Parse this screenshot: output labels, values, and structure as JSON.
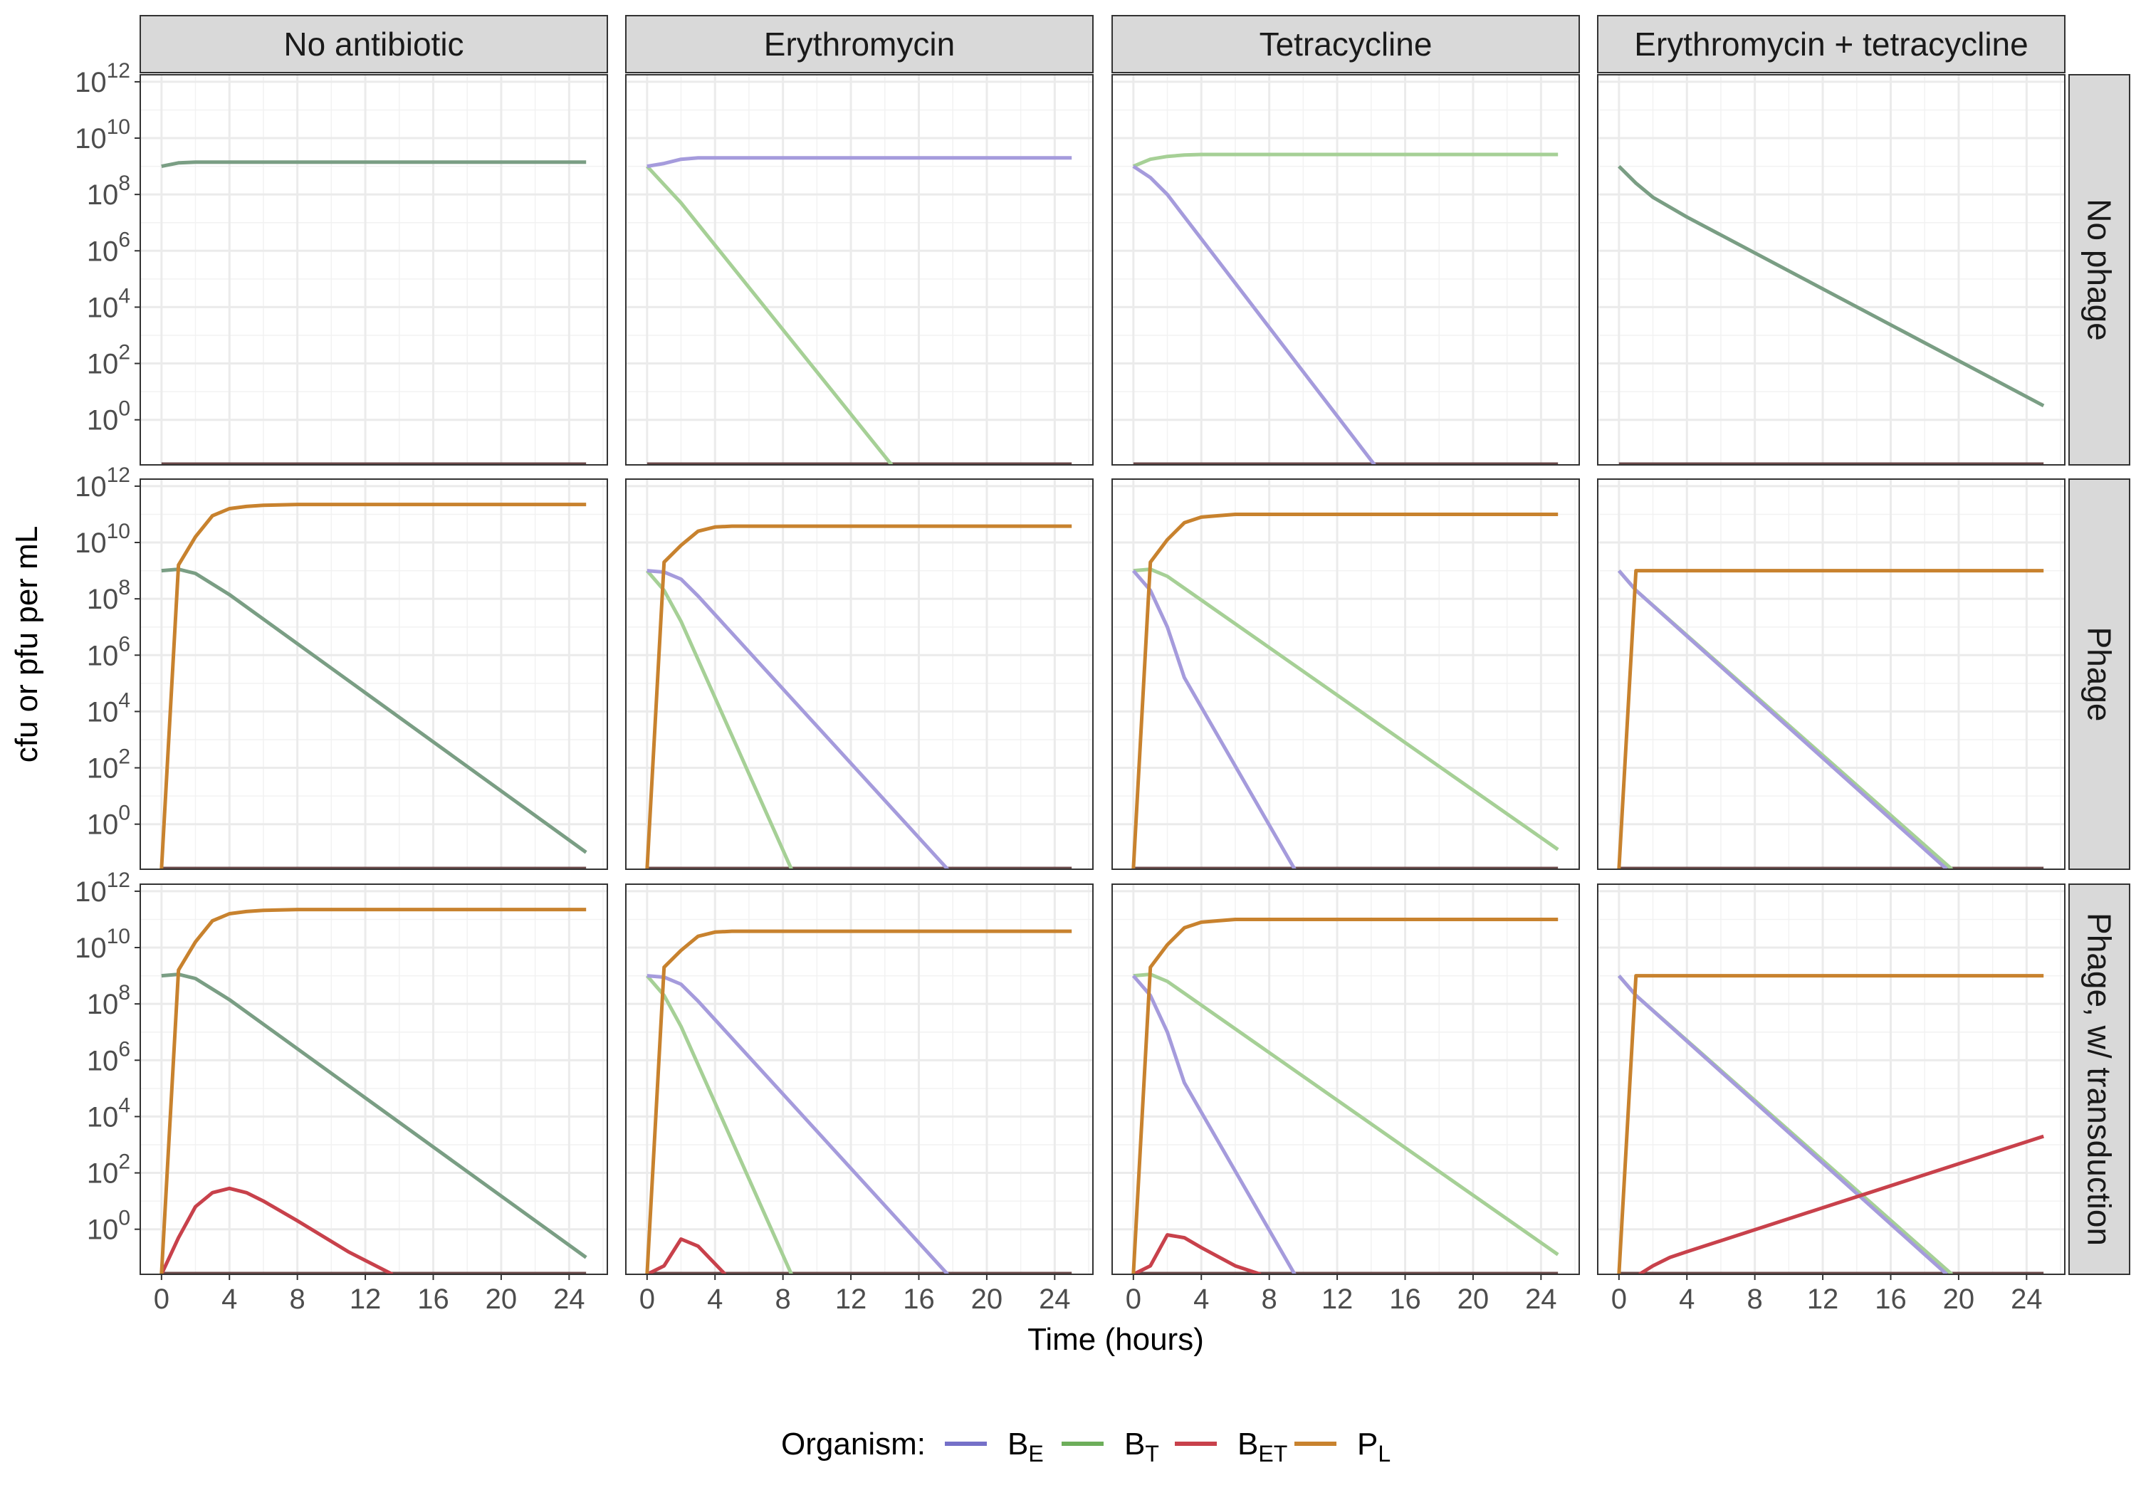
{
  "chart_data": {
    "type": "line",
    "facet_columns": [
      "No antibiotic",
      "Erythromycin",
      "Tetracycline",
      "Erythromycin + tetracycline"
    ],
    "facet_rows": [
      "No phage",
      "Phage",
      "Phage, w/ transduction"
    ],
    "xlabel": "Time (hours)",
    "ylabel": "cfu or pfu per mL",
    "x_ticks": [
      0,
      4,
      8,
      12,
      16,
      20,
      24
    ],
    "x_ticks_text": [
      "0",
      "4",
      "8",
      "12",
      "16",
      "20",
      "24"
    ],
    "xlim": [
      -1.25,
      26.25
    ],
    "y_scale": "log10",
    "y_ticks_exp": [
      0,
      2,
      4,
      6,
      8,
      10,
      12
    ],
    "y_tick_base": "10",
    "y_tick_exponents": [
      "0",
      "2",
      "4",
      "6",
      "8",
      "10",
      "12"
    ],
    "ylim_log10": [
      -1.6,
      12.25
    ],
    "grid": true,
    "legend": {
      "placement": "bottom",
      "title": "Organism:",
      "entries": [
        {
          "key": "BE",
          "base": "B",
          "sub": "E"
        },
        {
          "key": "BT",
          "base": "B",
          "sub": "T"
        },
        {
          "key": "BET",
          "base": "B",
          "sub": "ET"
        },
        {
          "key": "PL",
          "base": "P",
          "sub": "L"
        }
      ]
    },
    "colors": {
      "BE": "#A59BDC",
      "BT": "#A6D096",
      "BET": "#C8414B",
      "PL": "#C8822E",
      "overlap": "#7A9E84"
    },
    "legend_colors": {
      "BE": "#7570C8",
      "BT": "#6DAE5A",
      "BET": "#C8414B",
      "PL": "#C8822E"
    },
    "panels": [
      {
        "row": "No phage",
        "col": "No antibiotic",
        "series": [
          {
            "key": "overlap",
            "x": [
              0,
              1,
              2,
              4,
              25
            ],
            "y_log10": [
              9.0,
              9.12,
              9.15,
              9.15,
              9.15
            ]
          }
        ]
      },
      {
        "row": "No phage",
        "col": "Erythromycin",
        "series": [
          {
            "key": "BE",
            "x": [
              0,
              1,
              2,
              3,
              4,
              25
            ],
            "y_log10": [
              9.0,
              9.1,
              9.25,
              9.3,
              9.3,
              9.3
            ]
          },
          {
            "key": "BT",
            "x": [
              0,
              2,
              14.4
            ],
            "y_log10": [
              9.0,
              7.7,
              -1.6
            ]
          }
        ]
      },
      {
        "row": "No phage",
        "col": "Tetracycline",
        "series": [
          {
            "key": "BT",
            "x": [
              0,
              1,
              2,
              3,
              4,
              25
            ],
            "y_log10": [
              9.0,
              9.25,
              9.35,
              9.4,
              9.42,
              9.42
            ]
          },
          {
            "key": "BE",
            "x": [
              0,
              1,
              2,
              14.2
            ],
            "y_log10": [
              9.0,
              8.6,
              8.0,
              -1.6
            ]
          }
        ]
      },
      {
        "row": "No phage",
        "col": "Erythromycin + tetracycline",
        "series": [
          {
            "key": "overlap",
            "x": [
              0,
              1,
              2,
              4,
              25
            ],
            "y_log10": [
              9.0,
              8.4,
              7.9,
              7.2,
              0.5
            ]
          }
        ]
      },
      {
        "row": "Phage",
        "col": "No antibiotic",
        "series": [
          {
            "key": "overlap",
            "x": [
              0,
              1,
              2,
              4,
              25
            ],
            "y_log10": [
              9.0,
              9.05,
              8.9,
              8.15,
              -1.0
            ]
          },
          {
            "key": "PL",
            "x": [
              0,
              1,
              2,
              3,
              4,
              5,
              6,
              8,
              25
            ],
            "y_log10": [
              -1.6,
              9.2,
              10.2,
              10.95,
              11.2,
              11.28,
              11.32,
              11.35,
              11.35
            ]
          }
        ]
      },
      {
        "row": "Phage",
        "col": "Erythromycin",
        "series": [
          {
            "key": "BT",
            "x": [
              0,
              1,
              2,
              8.5
            ],
            "y_log10": [
              9.0,
              8.3,
              7.2,
              -1.6
            ]
          },
          {
            "key": "BE",
            "x": [
              0,
              1,
              2,
              3,
              17.7
            ],
            "y_log10": [
              9.0,
              8.95,
              8.7,
              8.1,
              -1.6
            ]
          },
          {
            "key": "PL",
            "x": [
              0,
              1,
              2,
              3,
              4,
              5,
              25
            ],
            "y_log10": [
              -1.6,
              9.3,
              9.9,
              10.4,
              10.55,
              10.58,
              10.58
            ]
          }
        ]
      },
      {
        "row": "Phage",
        "col": "Tetracycline",
        "series": [
          {
            "key": "BE",
            "x": [
              0,
              1,
              2,
              3,
              9.5
            ],
            "y_log10": [
              9.0,
              8.3,
              7.0,
              5.2,
              -1.6
            ]
          },
          {
            "key": "BT",
            "x": [
              0,
              1,
              2,
              25
            ],
            "y_log10": [
              9.0,
              9.05,
              8.8,
              -0.9
            ]
          },
          {
            "key": "PL",
            "x": [
              0,
              1,
              2,
              3,
              4,
              5,
              6,
              25
            ],
            "y_log10": [
              -1.6,
              9.3,
              10.1,
              10.7,
              10.9,
              10.95,
              11.0,
              11.0
            ]
          }
        ]
      },
      {
        "row": "Phage",
        "col": "Erythromycin + tetracycline",
        "series": [
          {
            "key": "BT",
            "x": [
              0,
              1,
              19.6
            ],
            "y_log10": [
              9.0,
              8.3,
              -1.6
            ]
          },
          {
            "key": "BE",
            "x": [
              0,
              1,
              19.3
            ],
            "y_log10": [
              9.0,
              8.3,
              -1.6
            ]
          },
          {
            "key": "PL",
            "x": [
              0,
              1,
              25
            ],
            "y_log10": [
              -1.6,
              9.0,
              9.0
            ]
          }
        ]
      },
      {
        "row": "Phage, w/ transduction",
        "col": "No antibiotic",
        "series": [
          {
            "key": "overlap",
            "x": [
              0,
              1,
              2,
              4,
              25
            ],
            "y_log10": [
              9.0,
              9.05,
              8.9,
              8.15,
              -1.0
            ]
          },
          {
            "key": "BET",
            "x": [
              0,
              1,
              2,
              3,
              4,
              5,
              6,
              8,
              11,
              13.6
            ],
            "y_log10": [
              -1.6,
              -0.3,
              0.8,
              1.3,
              1.45,
              1.3,
              1.0,
              0.3,
              -0.8,
              -1.6
            ]
          },
          {
            "key": "PL",
            "x": [
              0,
              1,
              2,
              3,
              4,
              5,
              6,
              8,
              25
            ],
            "y_log10": [
              -1.6,
              9.2,
              10.2,
              10.95,
              11.2,
              11.28,
              11.32,
              11.35,
              11.35
            ]
          }
        ]
      },
      {
        "row": "Phage, w/ transduction",
        "col": "Erythromycin",
        "series": [
          {
            "key": "BT",
            "x": [
              0,
              1,
              2,
              8.5
            ],
            "y_log10": [
              9.0,
              8.3,
              7.2,
              -1.6
            ]
          },
          {
            "key": "BE",
            "x": [
              0,
              1,
              2,
              3,
              17.7
            ],
            "y_log10": [
              9.0,
              8.95,
              8.7,
              8.1,
              -1.6
            ]
          },
          {
            "key": "BET",
            "x": [
              0,
              1,
              2,
              3,
              4.6
            ],
            "y_log10": [
              -1.6,
              -1.3,
              -0.35,
              -0.6,
              -1.6
            ]
          },
          {
            "key": "PL",
            "x": [
              0,
              1,
              2,
              3,
              4,
              5,
              25
            ],
            "y_log10": [
              -1.6,
              9.3,
              9.9,
              10.4,
              10.55,
              10.58,
              10.58
            ]
          }
        ]
      },
      {
        "row": "Phage, w/ transduction",
        "col": "Tetracycline",
        "series": [
          {
            "key": "BE",
            "x": [
              0,
              1,
              2,
              3,
              9.5
            ],
            "y_log10": [
              9.0,
              8.3,
              7.0,
              5.2,
              -1.6
            ]
          },
          {
            "key": "BT",
            "x": [
              0,
              1,
              2,
              25
            ],
            "y_log10": [
              9.0,
              9.05,
              8.8,
              -0.9
            ]
          },
          {
            "key": "BET",
            "x": [
              0,
              1,
              2,
              3,
              4,
              6,
              7.5
            ],
            "y_log10": [
              -1.6,
              -1.3,
              -0.2,
              -0.3,
              -0.65,
              -1.3,
              -1.6
            ]
          },
          {
            "key": "PL",
            "x": [
              0,
              1,
              2,
              3,
              4,
              5,
              6,
              25
            ],
            "y_log10": [
              -1.6,
              9.3,
              10.1,
              10.7,
              10.9,
              10.95,
              11.0,
              11.0
            ]
          }
        ]
      },
      {
        "row": "Phage, w/ transduction",
        "col": "Erythromycin + tetracycline",
        "series": [
          {
            "key": "BT",
            "x": [
              0,
              1,
              19.6
            ],
            "y_log10": [
              9.0,
              8.3,
              -1.6
            ]
          },
          {
            "key": "BE",
            "x": [
              0,
              1,
              19.3
            ],
            "y_log10": [
              9.0,
              8.3,
              -1.6
            ]
          },
          {
            "key": "BET",
            "x": [
              1.2,
              2,
              3,
              4,
              25
            ],
            "y_log10": [
              -1.6,
              -1.3,
              -1.0,
              -0.8,
              3.3
            ]
          },
          {
            "key": "PL",
            "x": [
              0,
              1,
              25
            ],
            "y_log10": [
              -1.6,
              9.0,
              9.0
            ]
          }
        ]
      }
    ]
  }
}
